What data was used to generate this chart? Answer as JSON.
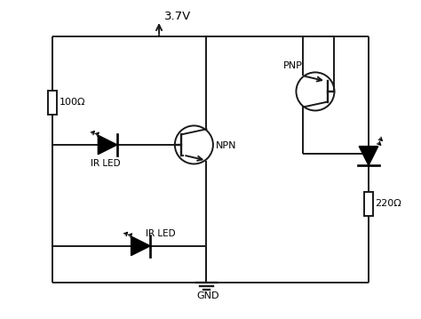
{
  "background_color": "#ffffff",
  "line_color": "#1a1a1a",
  "component_color": "#000000",
  "vcc_label": "3.7V",
  "gnd_label": "GND",
  "r1_label": "100Ω",
  "r2_label": "220Ω",
  "led1_label": "IR LED",
  "led2_label": "IR LED",
  "npn_label": "NPN",
  "pnp_label": "PNP",
  "figsize": [
    4.74,
    3.59
  ],
  "dpi": 100
}
